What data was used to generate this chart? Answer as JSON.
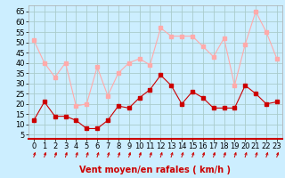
{
  "hours": [
    0,
    1,
    2,
    3,
    4,
    5,
    6,
    7,
    8,
    9,
    10,
    11,
    12,
    13,
    14,
    15,
    16,
    17,
    18,
    19,
    20,
    21,
    22,
    23
  ],
  "wind_mean": [
    12,
    21,
    14,
    14,
    12,
    8,
    8,
    12,
    19,
    18,
    23,
    27,
    34,
    29,
    20,
    26,
    23,
    18,
    18,
    18,
    29,
    25,
    20,
    21
  ],
  "wind_gust": [
    51,
    40,
    33,
    40,
    19,
    20,
    38,
    24,
    35,
    40,
    42,
    39,
    57,
    53,
    53,
    53,
    48,
    43,
    52,
    29,
    49,
    65,
    55,
    42
  ],
  "bg_color": "#cceeff",
  "grid_color": "#aacccc",
  "line_mean_color": "#cc0000",
  "line_gust_color": "#ffaaaa",
  "marker": "s",
  "markersize": 2.5,
  "linewidth": 0.8,
  "xlabel": "Vent moyen/en rafales ( km/h )",
  "xlabel_color": "#cc0000",
  "xlabel_fontsize": 7,
  "ylabel_ticks": [
    5,
    10,
    15,
    20,
    25,
    30,
    35,
    40,
    45,
    50,
    55,
    60,
    65
  ],
  "ylim": [
    3,
    68
  ],
  "xlim": [
    -0.5,
    23.5
  ],
  "tick_fontsize": 6,
  "arrow_color": "#cc0000",
  "bottom_line_color": "#cc0000"
}
